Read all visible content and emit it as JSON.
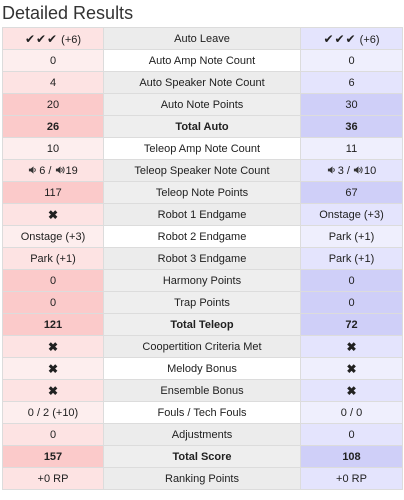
{
  "title": "Detailed Results",
  "icons": {
    "check": "check-icon",
    "cross": "cross-icon",
    "speaker_low": "speaker-low-icon",
    "speaker_high": "speaker-high-icon"
  },
  "colors": {
    "red_alliance": "#fbcaca",
    "blue_alliance": "#cfcff8"
  },
  "rows": [
    {
      "label": "Auto Leave",
      "red": {
        "type": "check",
        "marks": "✔✔✔",
        "extra": "(+6)"
      },
      "blue": {
        "type": "check",
        "marks": "✔✔✔",
        "extra": "(+6)"
      }
    },
    {
      "label": "Auto Amp Note Count",
      "red": {
        "type": "text",
        "text": "0"
      },
      "blue": {
        "type": "text",
        "text": "0"
      }
    },
    {
      "label": "Auto Speaker Note Count",
      "red": {
        "type": "text",
        "text": "4"
      },
      "blue": {
        "type": "text",
        "text": "6"
      }
    },
    {
      "label": "Auto Note Points",
      "highlight": true,
      "red": {
        "type": "text",
        "text": "20"
      },
      "blue": {
        "type": "text",
        "text": "30"
      }
    },
    {
      "label": "Total Auto",
      "highlight": true,
      "bold": true,
      "red": {
        "type": "text",
        "text": "26"
      },
      "blue": {
        "type": "text",
        "text": "36"
      }
    },
    {
      "label": "Teleop Amp Note Count",
      "red": {
        "type": "text",
        "text": "10"
      },
      "blue": {
        "type": "text",
        "text": "11"
      }
    },
    {
      "label": "Teleop Speaker Note Count",
      "red": {
        "type": "speaker",
        "a": "6",
        "sep": "/",
        "b": "19"
      },
      "blue": {
        "type": "speaker",
        "a": "3",
        "sep": "/",
        "b": "10"
      }
    },
    {
      "label": "Teleop Note Points",
      "highlight": true,
      "red": {
        "type": "text",
        "text": "117"
      },
      "blue": {
        "type": "text",
        "text": "67"
      }
    },
    {
      "label": "Robot 1 Endgame",
      "red": {
        "type": "cross",
        "text": "✖"
      },
      "blue": {
        "type": "text",
        "text": "Onstage (+3)"
      }
    },
    {
      "label": "Robot 2 Endgame",
      "red": {
        "type": "text",
        "text": "Onstage (+3)"
      },
      "blue": {
        "type": "text",
        "text": "Park (+1)"
      }
    },
    {
      "label": "Robot 3 Endgame",
      "red": {
        "type": "text",
        "text": "Park (+1)"
      },
      "blue": {
        "type": "text",
        "text": "Park (+1)"
      }
    },
    {
      "label": "Harmony Points",
      "highlight": true,
      "red": {
        "type": "text",
        "text": "0"
      },
      "blue": {
        "type": "text",
        "text": "0"
      }
    },
    {
      "label": "Trap Points",
      "highlight": true,
      "red": {
        "type": "text",
        "text": "0"
      },
      "blue": {
        "type": "text",
        "text": "0"
      }
    },
    {
      "label": "Total Teleop",
      "highlight": true,
      "bold": true,
      "red": {
        "type": "text",
        "text": "121"
      },
      "blue": {
        "type": "text",
        "text": "72"
      }
    },
    {
      "label": "Coopertition Criteria Met",
      "red": {
        "type": "cross",
        "text": "✖"
      },
      "blue": {
        "type": "cross",
        "text": "✖"
      }
    },
    {
      "label": "Melody Bonus",
      "red": {
        "type": "cross",
        "text": "✖"
      },
      "blue": {
        "type": "cross",
        "text": "✖"
      }
    },
    {
      "label": "Ensemble Bonus",
      "red": {
        "type": "cross",
        "text": "✖"
      },
      "blue": {
        "type": "cross",
        "text": "✖"
      }
    },
    {
      "label": "Fouls / Tech Fouls",
      "red": {
        "type": "text",
        "text": "0 / 2 (+10)"
      },
      "blue": {
        "type": "text",
        "text": "0 / 0"
      }
    },
    {
      "label": "Adjustments",
      "red": {
        "type": "text",
        "text": "0"
      },
      "blue": {
        "type": "text",
        "text": "0"
      }
    },
    {
      "label": "Total Score",
      "highlight": true,
      "bold": true,
      "red": {
        "type": "text",
        "text": "157"
      },
      "blue": {
        "type": "text",
        "text": "108"
      }
    },
    {
      "label": "Ranking Points",
      "red": {
        "type": "text",
        "text": "+0 RP"
      },
      "blue": {
        "type": "text",
        "text": "+0 RP"
      }
    }
  ]
}
